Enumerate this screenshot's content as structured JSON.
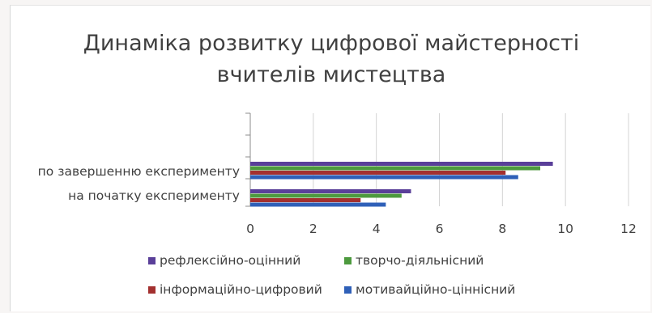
{
  "chart_data": {
    "type": "bar",
    "orientation": "horizontal",
    "title": "Динаміка розвитку цифрової майстерності вчителів мистецтва",
    "title_lines": [
      "Динаміка розвитку цифрової майстерності",
      "вчителів мистецтва"
    ],
    "categories": [
      "по завершенню експерименту",
      "на початку експерименту"
    ],
    "series": [
      {
        "name": "рефлексійно-оцінний",
        "color": "#5a3f99",
        "values": [
          9.6,
          5.1
        ]
      },
      {
        "name": "творчо-діяльнісний",
        "color": "#4d9a3e",
        "values": [
          9.2,
          4.8
        ]
      },
      {
        "name": "інформаційно-цифровий",
        "color": "#a3302f",
        "values": [
          8.1,
          3.5
        ]
      },
      {
        "name": "мотивайційно-ціннісний",
        "color": "#2f60b8",
        "values": [
          8.5,
          4.3
        ]
      }
    ],
    "xlim": [
      0,
      12
    ],
    "xticks": [
      0,
      2,
      4,
      6,
      8,
      10,
      12
    ],
    "grid": "vertical",
    "legend_position": "bottom"
  }
}
